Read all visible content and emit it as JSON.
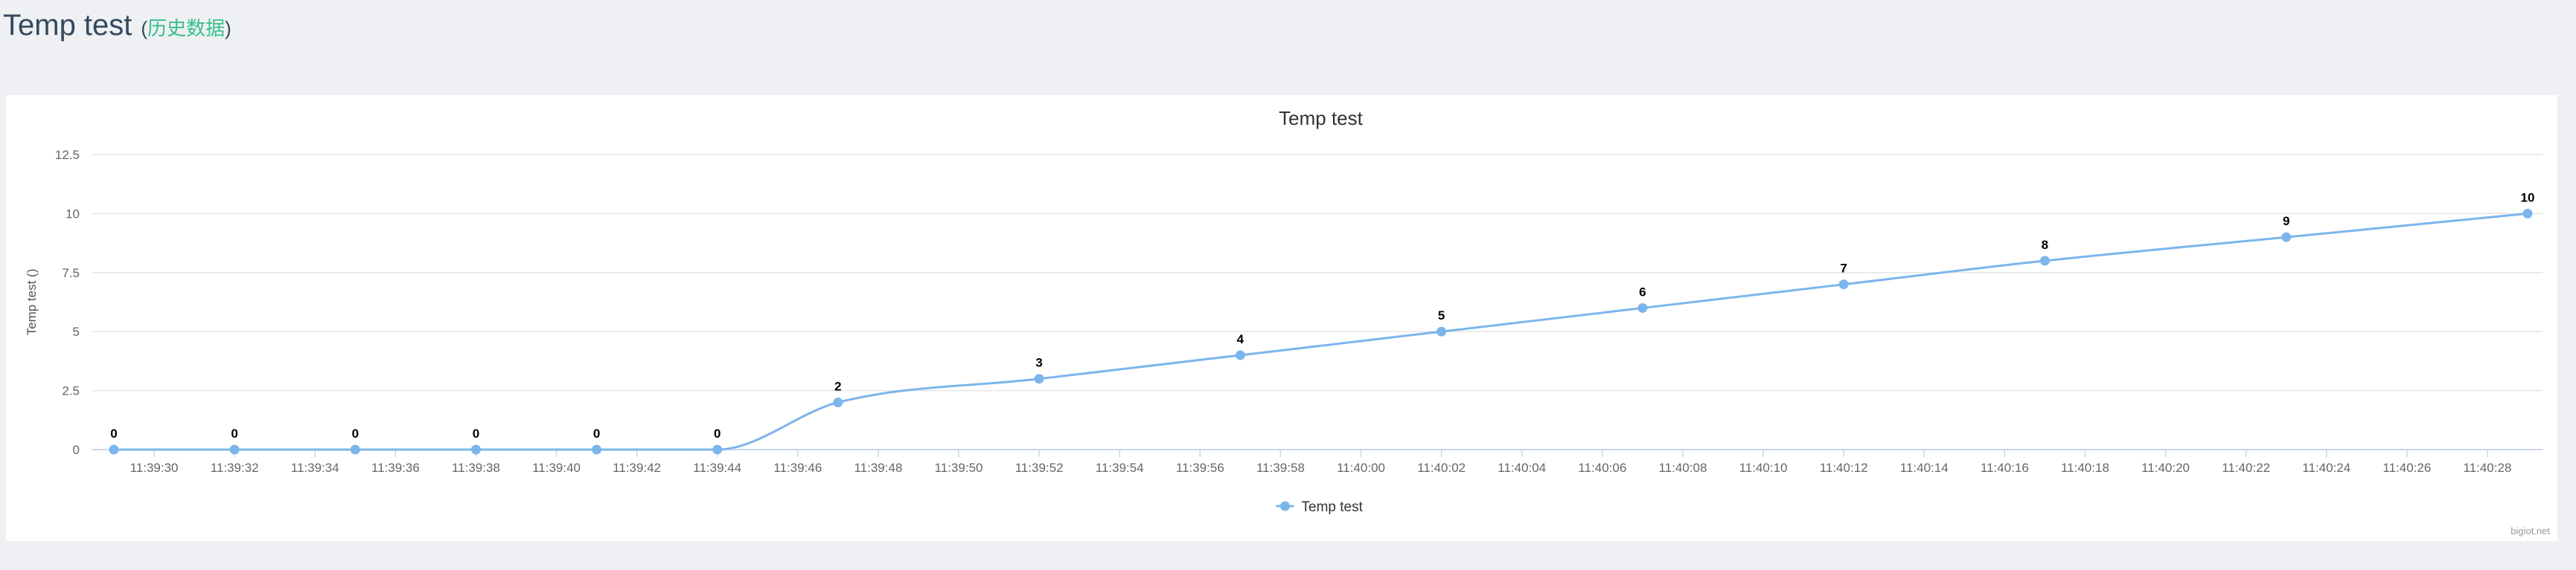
{
  "header": {
    "title": "Temp test",
    "paren_open": "(",
    "history_link": "历史数据",
    "paren_close": ")"
  },
  "colors": {
    "series": "#7cb5ec",
    "grid": "#e6e6e6",
    "axis": "#ccd6eb",
    "link": "#37c089",
    "title": "#34495e"
  },
  "chart_data": {
    "type": "line",
    "title": "Temp test",
    "xlabel": "",
    "ylabel": "Temp test ()",
    "ylim": [
      0,
      12.5
    ],
    "yticks": [
      "0",
      "2.5",
      "5",
      "7.5",
      "10",
      "12.5"
    ],
    "xticks": [
      "11:39:30",
      "11:39:32",
      "11:39:34",
      "11:39:36",
      "11:39:38",
      "11:39:40",
      "11:39:42",
      "11:39:44",
      "11:39:46",
      "11:39:48",
      "11:39:50",
      "11:39:52",
      "11:39:54",
      "11:39:56",
      "11:39:58",
      "11:40:00",
      "11:40:02",
      "11:40:04",
      "11:40:06",
      "11:40:08",
      "11:40:10",
      "11:40:12",
      "11:40:14",
      "11:40:16",
      "11:40:18",
      "11:40:20",
      "11:40:22",
      "11:40:24",
      "11:40:26",
      "11:40:28"
    ],
    "xlim": [
      "11:39:29",
      "11:40:29"
    ],
    "series": [
      {
        "name": "Temp test",
        "x": [
          "11:39:29",
          "11:39:32",
          "11:39:35",
          "11:39:38",
          "11:39:41",
          "11:39:44",
          "11:39:47",
          "11:39:52",
          "11:39:57",
          "11:40:02",
          "11:40:07",
          "11:40:12",
          "11:40:17",
          "11:40:23",
          "11:40:29"
        ],
        "values": [
          0,
          0,
          0,
          0,
          0,
          0,
          2,
          3,
          4,
          5,
          6,
          7,
          8,
          9,
          10
        ]
      }
    ],
    "legend": "bottom-center",
    "grid": true,
    "data_labels": true,
    "credit": "bigiot.net"
  }
}
